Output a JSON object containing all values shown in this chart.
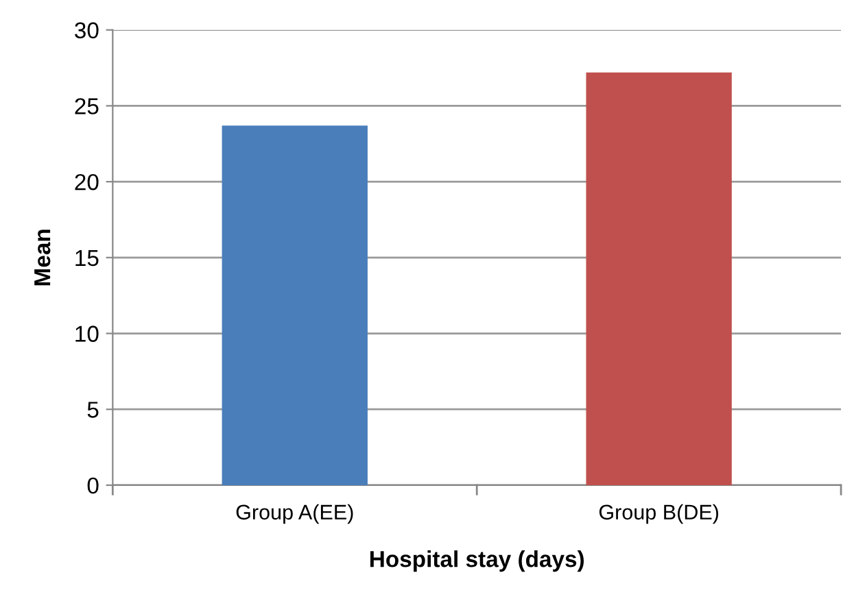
{
  "chart_data": {
    "type": "bar",
    "xlabel": "Hospital stay (days)",
    "ylabel": "Mean",
    "categories": [
      "Group A(EE)",
      "Group B(DE)"
    ],
    "values": [
      23.7,
      27.2
    ],
    "colors": [
      "#4a7ebb",
      "#c0504d"
    ],
    "ylim": [
      0,
      30
    ],
    "yticks": [
      0,
      5,
      10,
      15,
      20,
      25,
      30
    ],
    "grid": "y",
    "legend": false
  }
}
